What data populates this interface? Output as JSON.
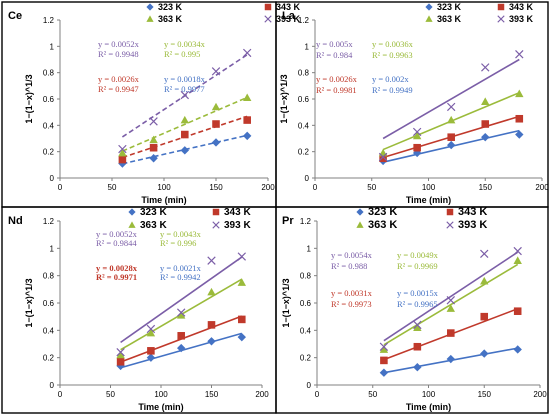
{
  "figure": {
    "panels": [
      {
        "id": "ce",
        "label": "Ce",
        "style": "dashed",
        "xlabel": "Time (min)",
        "ylabel": "1−(1−x)^1/3",
        "ylim": [
          0,
          1.2
        ],
        "xlim": [
          0,
          200
        ],
        "yticks": [
          "0",
          "0.2",
          "0.4",
          "0.6",
          "0.8",
          "1",
          "1.2"
        ],
        "xticks": [
          "0",
          "50",
          "100",
          "150",
          "200"
        ],
        "legend": [
          "323 K",
          "343 K",
          "363 K",
          "393 K"
        ],
        "annotations": [
          {
            "eq": "y = 0.0052x",
            "r2": "R² = 0.9948",
            "series": 3,
            "bold": false
          },
          {
            "eq": "y = 0.0034x",
            "r2": "R² = 0.995",
            "series": 2,
            "bold": false
          },
          {
            "eq": "y = 0.0026x",
            "r2": "R² = 0.9947",
            "series": 1,
            "bold": false
          },
          {
            "eq": "y = 0.0018x",
            "r2": "R² = 0.9977",
            "series": 0,
            "bold": false
          }
        ]
      },
      {
        "id": "la",
        "label": "La",
        "style": "solid",
        "xlabel": "Time (min)",
        "ylabel": "1−(1−x)^1/3",
        "ylim": [
          0,
          1.2
        ],
        "xlim": [
          0,
          200
        ],
        "yticks": [
          "0",
          "0.2",
          "0.4",
          "0.6",
          "0.8",
          "1",
          "1.2"
        ],
        "xticks": [
          "0",
          "50",
          "100",
          "150",
          "200"
        ],
        "legend": [
          "323 K",
          "343 K",
          "363 K",
          "393 K"
        ],
        "annotations": [
          {
            "eq": "y = 0.005x",
            "r2": "R² = 0.984",
            "series": 3,
            "bold": false
          },
          {
            "eq": "y = 0.0036x",
            "r2": "R² = 0.9963",
            "series": 2,
            "bold": false
          },
          {
            "eq": "y = 0.0026x",
            "r2": "R² = 0.9981",
            "series": 1,
            "bold": false
          },
          {
            "eq": "y = 0.002x",
            "r2": "R² = 0.9949",
            "series": 0,
            "bold": false
          }
        ]
      },
      {
        "id": "nd",
        "label": "Nd",
        "style": "solid",
        "xlabel": "Time (min)",
        "ylabel": "1−(1−x)^1/3",
        "ylim": [
          0,
          1.2
        ],
        "xlim": [
          0,
          200
        ],
        "yticks": [
          "0",
          "0.2",
          "0.4",
          "0.6",
          "0.8",
          "1",
          "1.2"
        ],
        "xticks": [
          "0",
          "50",
          "100",
          "150",
          "200"
        ],
        "legend": [
          "323 K",
          "343 K",
          "363 K",
          "393 K"
        ],
        "annotations": [
          {
            "eq": "y = 0.0052x",
            "r2": "R² = 0.9844",
            "series": 3,
            "bold": false
          },
          {
            "eq": "y = 0.0043x",
            "r2": "R² = 0.996",
            "series": 2,
            "bold": false
          },
          {
            "eq": "y = 0.0028x",
            "r2": "R² = 0.9971",
            "series": 1,
            "bold": true
          },
          {
            "eq": "y = 0.0021x",
            "r2": "R² = 0.9942",
            "series": 0,
            "bold": false
          }
        ]
      },
      {
        "id": "pr",
        "label": "Pr",
        "style": "solid",
        "xlabel": "Time (min)",
        "ylabel": "1−(1−x)^1/3",
        "ylim": [
          0,
          1.2
        ],
        "xlim": [
          0,
          200
        ],
        "yticks": [
          "0",
          "0.2",
          "0.4",
          "0.6",
          "0.8",
          "1",
          "1.2"
        ],
        "xticks": [
          "0",
          "50",
          "100",
          "150",
          "200"
        ],
        "legend": [
          "323 K",
          "343 K",
          "363 K",
          "393 K"
        ],
        "annotations": [
          {
            "eq": "y = 0.0054x",
            "r2": "R² = 0.988",
            "series": 3,
            "bold": false
          },
          {
            "eq": "y = 0.0049x",
            "r2": "R² = 0.9969",
            "series": 2,
            "bold": false
          },
          {
            "eq": "y = 0.0031x",
            "r2": "R² = 0.9973",
            "series": 1,
            "bold": false
          },
          {
            "eq": "y = 0.0015x",
            "r2": "R² = 0.9965",
            "series": 0,
            "bold": false
          }
        ]
      }
    ]
  },
  "colors": {
    "series": [
      "#4472c4",
      "#c0392b",
      "#9bbb3b",
      "#7b5ea7"
    ],
    "frame": "#000000",
    "axis": "#808080",
    "text": "#000000"
  },
  "chart_data": [
    {
      "type": "scatter",
      "title": "Ce",
      "xlabel": "Time (min)",
      "ylabel": "1−(1−x)^1/3",
      "xlim": [
        0,
        200
      ],
      "ylim": [
        0,
        1.2
      ],
      "legend": "top-right",
      "trendline": "dashed",
      "x": [
        60,
        90,
        120,
        150,
        180
      ],
      "series": [
        {
          "name": "323 K",
          "marker": "diamond",
          "values": [
            0.11,
            0.15,
            0.21,
            0.27,
            0.32
          ],
          "fit_slope": 0.0018,
          "r2": 0.9977
        },
        {
          "name": "343 K",
          "marker": "square",
          "values": [
            0.14,
            0.23,
            0.33,
            0.41,
            0.44
          ],
          "fit_slope": 0.0026,
          "r2": 0.9947
        },
        {
          "name": "363 K",
          "marker": "triangle",
          "values": [
            0.19,
            0.29,
            0.44,
            0.54,
            0.61
          ],
          "fit_slope": 0.0034,
          "r2": 0.995
        },
        {
          "name": "393 K",
          "marker": "x",
          "values": [
            0.22,
            0.43,
            0.63,
            0.81,
            0.95
          ],
          "fit_slope": 0.0052,
          "r2": 0.9948
        }
      ]
    },
    {
      "type": "scatter",
      "title": "La",
      "xlabel": "Time (min)",
      "ylabel": "1−(1−x)^1/3",
      "xlim": [
        0,
        200
      ],
      "ylim": [
        0,
        1.2
      ],
      "legend": "top-right",
      "trendline": "solid",
      "x": [
        60,
        90,
        120,
        150,
        180
      ],
      "series": [
        {
          "name": "323 K",
          "marker": "diamond",
          "values": [
            0.13,
            0.19,
            0.25,
            0.31,
            0.33
          ],
          "fit_slope": 0.002,
          "r2": 0.9949
        },
        {
          "name": "343 K",
          "marker": "square",
          "values": [
            0.15,
            0.23,
            0.31,
            0.41,
            0.45
          ],
          "fit_slope": 0.0026,
          "r2": 0.9981
        },
        {
          "name": "363 K",
          "marker": "triangle",
          "values": [
            0.19,
            0.32,
            0.44,
            0.58,
            0.64
          ],
          "fit_slope": 0.0036,
          "r2": 0.9963
        },
        {
          "name": "393 K",
          "marker": "x",
          "values": [
            0.16,
            0.35,
            0.54,
            0.84,
            0.94
          ],
          "fit_slope": 0.005,
          "r2": 0.984
        }
      ]
    },
    {
      "type": "scatter",
      "title": "Nd",
      "xlabel": "Time (min)",
      "ylabel": "1−(1−x)^1/3",
      "xlim": [
        0,
        200
      ],
      "ylim": [
        0,
        1.2
      ],
      "legend": "top-right",
      "trendline": "solid",
      "x": [
        60,
        90,
        120,
        150,
        180
      ],
      "series": [
        {
          "name": "323 K",
          "marker": "diamond",
          "values": [
            0.14,
            0.2,
            0.27,
            0.32,
            0.35
          ],
          "fit_slope": 0.0021,
          "r2": 0.9942
        },
        {
          "name": "343 K",
          "marker": "square",
          "values": [
            0.17,
            0.25,
            0.36,
            0.44,
            0.48
          ],
          "fit_slope": 0.0028,
          "r2": 0.9971
        },
        {
          "name": "363 K",
          "marker": "triangle",
          "values": [
            0.22,
            0.38,
            0.51,
            0.68,
            0.75
          ],
          "fit_slope": 0.0043,
          "r2": 0.996
        },
        {
          "name": "393 K",
          "marker": "x",
          "values": [
            0.24,
            0.41,
            0.53,
            0.91,
            0.94
          ],
          "fit_slope": 0.0052,
          "r2": 0.9844
        }
      ]
    },
    {
      "type": "scatter",
      "title": "Pr",
      "xlabel": "Time (min)",
      "ylabel": "1−(1−x)^1/3",
      "xlim": [
        0,
        200
      ],
      "ylim": [
        0,
        1.2
      ],
      "legend": "top-right",
      "trendline": "solid",
      "x": [
        60,
        90,
        120,
        150,
        180
      ],
      "series": [
        {
          "name": "323 K",
          "marker": "diamond",
          "values": [
            0.09,
            0.13,
            0.19,
            0.23,
            0.26
          ],
          "fit_slope": 0.0015,
          "r2": 0.9965
        },
        {
          "name": "343 K",
          "marker": "square",
          "values": [
            0.18,
            0.28,
            0.38,
            0.5,
            0.54
          ],
          "fit_slope": 0.0031,
          "r2": 0.9973
        },
        {
          "name": "363 K",
          "marker": "triangle",
          "values": [
            0.26,
            0.42,
            0.56,
            0.76,
            0.91
          ],
          "fit_slope": 0.0049,
          "r2": 0.9969
        },
        {
          "name": "393 K",
          "marker": "x",
          "values": [
            0.28,
            0.44,
            0.62,
            0.96,
            0.98
          ],
          "fit_slope": 0.0054,
          "r2": 0.988
        }
      ]
    }
  ]
}
